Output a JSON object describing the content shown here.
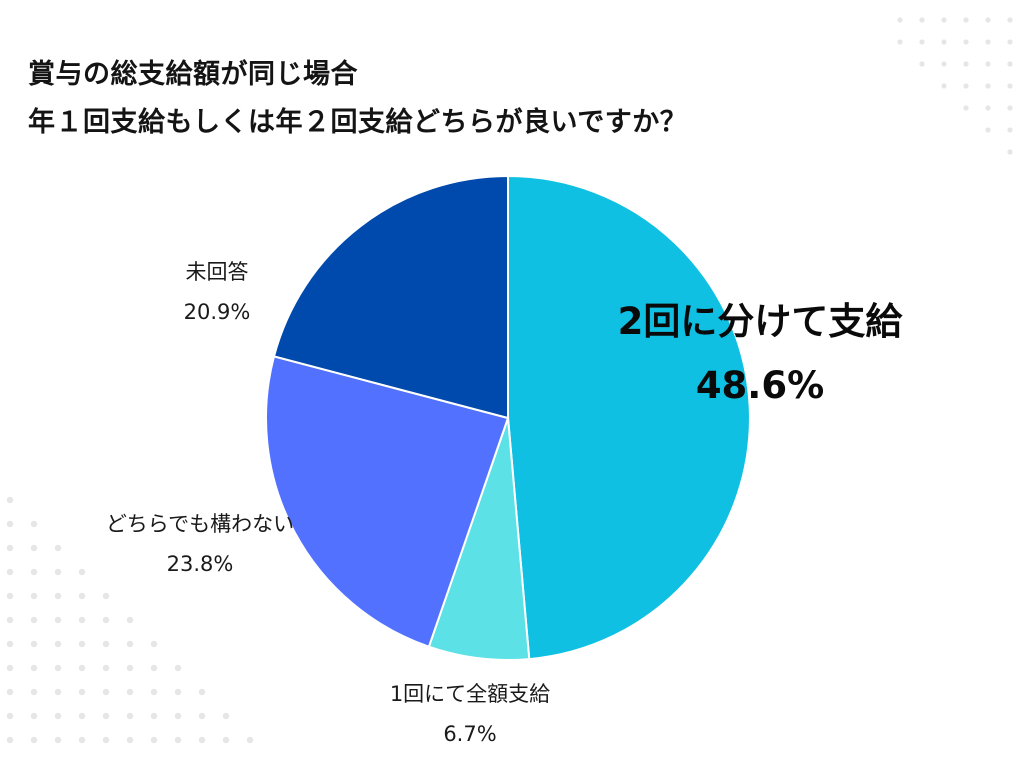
{
  "title": {
    "line1": "賞与の総支給額が同じ場合",
    "line2": "年１回支給もしくは年２回支給どちらが良いですか？"
  },
  "colors": {
    "background": "#ffffff",
    "dots": "#e6e6e6",
    "text": "#141414"
  },
  "chart_data": {
    "type": "pie",
    "title": "賞与の総支給額が同じ場合 年１回支給もしくは年２回支給どちらが良いですか？",
    "start": "12 o'clock",
    "direction": "clockwise",
    "slices": [
      {
        "label": "2回に分けて支給",
        "value": 48.6,
        "value_label": "48.6%",
        "color": "#0fc0e2"
      },
      {
        "label": "1回にて全額支給",
        "value": 6.7,
        "value_label": "6.7%",
        "color": "#5ce1e6"
      },
      {
        "label": "どちらでも構わない",
        "value": 23.8,
        "value_label": "23.8%",
        "color": "#5271ff"
      },
      {
        "label": "未回答",
        "value": 20.9,
        "value_label": "20.9%",
        "color": "#004aad"
      }
    ]
  }
}
